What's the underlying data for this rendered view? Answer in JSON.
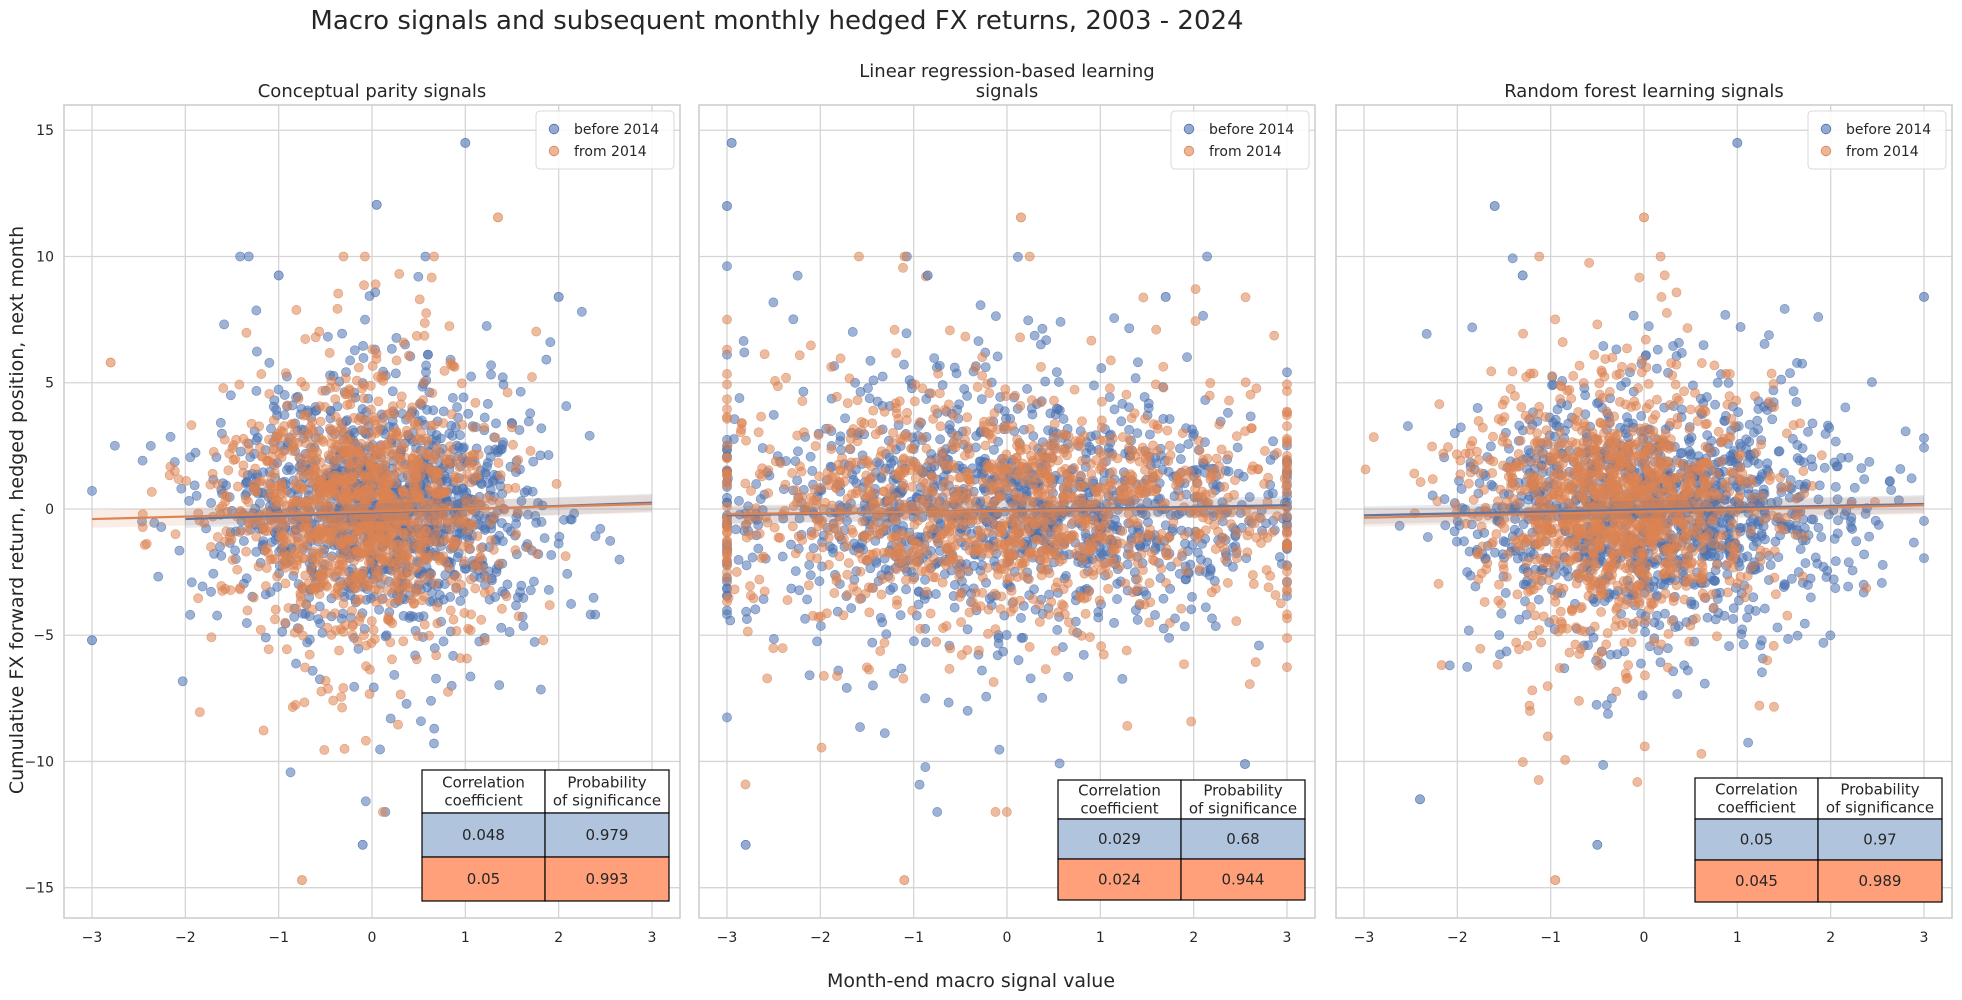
{
  "figure": {
    "suptitle": "Macro signals and subsequent monthly hedged FX returns, 2003 - 2024",
    "shared_xlabel": "Month-end macro signal value",
    "shared_ylabel": "Cumulative FX forward return, hedged position, next month"
  },
  "colors": {
    "before_2014": "#4C72B0",
    "from_2014": "#DD8452",
    "table_row_before": "#B0C4DE",
    "table_row_from": "#FFA07A",
    "grid": "#d5d5d5",
    "spine": "#cccccc"
  },
  "chart_data": [
    {
      "type": "scatter",
      "title": "Conceptual parity signals",
      "xlim": [
        -3.3,
        3.3
      ],
      "ylim": [
        -16.2,
        16.0
      ],
      "xticks": [
        -3,
        -2,
        -1,
        0,
        1,
        2,
        3
      ],
      "yticks": [
        -15,
        -10,
        -5,
        0,
        5,
        10,
        15
      ],
      "grid": true,
      "legend_position": "top-right",
      "legend": [
        "before 2014",
        "from 2014"
      ],
      "series": [
        {
          "name": "before 2014",
          "regression": {
            "x": [
              -2.0,
              3.0
            ],
            "y": [
              -0.4,
              0.25
            ]
          }
        },
        {
          "name": "from 2014",
          "regression": {
            "x": [
              -3.0,
              3.0
            ],
            "y": [
              -0.4,
              0.2
            ]
          }
        }
      ],
      "notable_points": [
        {
          "x": 0.05,
          "y": 12.05
        },
        {
          "x": 1.0,
          "y": 14.5
        },
        {
          "x": 1.35,
          "y": 11.55
        },
        {
          "x": -1.0,
          "y": 9.25
        },
        {
          "x": 2.0,
          "y": 8.4
        },
        {
          "x": -0.75,
          "y": -14.7
        },
        {
          "x": -0.1,
          "y": -13.3
        },
        {
          "x": -3.0,
          "y": -5.2
        },
        {
          "x": -2.8,
          "y": 5.8
        }
      ],
      "table": {
        "headers": [
          "Correlation\ncoefficient",
          "Probability\nof significance"
        ],
        "rows": [
          [
            "0.048",
            "0.979"
          ],
          [
            "0.05",
            "0.993"
          ]
        ]
      }
    },
    {
      "type": "scatter",
      "title": "Linear regression-based learning\nsignals",
      "xlim": [
        -3.3,
        3.3
      ],
      "ylim": [
        -16.2,
        16.0
      ],
      "xticks": [
        -3,
        -2,
        -1,
        0,
        1,
        2,
        3
      ],
      "yticks": [
        -15,
        -10,
        -5,
        0,
        5,
        10,
        15
      ],
      "grid": true,
      "legend_position": "top-right",
      "legend": [
        "before 2014",
        "from 2014"
      ],
      "series": [
        {
          "name": "before 2014",
          "regression": {
            "x": [
              -3.0,
              3.0
            ],
            "y": [
              -0.25,
              0.15
            ]
          }
        },
        {
          "name": "from 2014",
          "regression": {
            "x": [
              -3.0,
              3.0
            ],
            "y": [
              -0.2,
              0.05
            ]
          }
        }
      ],
      "notable_points": [
        {
          "x": -3.0,
          "y": 12.0
        },
        {
          "x": -2.95,
          "y": 14.5
        },
        {
          "x": 0.15,
          "y": 11.55
        },
        {
          "x": -0.85,
          "y": 9.25
        },
        {
          "x": 1.7,
          "y": 8.4
        },
        {
          "x": -1.1,
          "y": -14.7
        },
        {
          "x": -2.8,
          "y": -13.3
        },
        {
          "x": 2.55,
          "y": -10.1
        }
      ],
      "table": {
        "headers": [
          "Correlation\ncoefficient",
          "Probability\nof significance"
        ],
        "rows": [
          [
            "0.029",
            "0.68"
          ],
          [
            "0.024",
            "0.944"
          ]
        ]
      }
    },
    {
      "type": "scatter",
      "title": "Random forest learning signals",
      "xlim": [
        -3.3,
        3.3
      ],
      "ylim": [
        -16.2,
        16.0
      ],
      "xticks": [
        -3,
        -2,
        -1,
        0,
        1,
        2,
        3
      ],
      "yticks": [
        -15,
        -10,
        -5,
        0,
        5,
        10,
        15
      ],
      "grid": true,
      "legend_position": "top-right",
      "legend": [
        "before 2014",
        "from 2014"
      ],
      "series": [
        {
          "name": "before 2014",
          "regression": {
            "x": [
              -3.0,
              3.0
            ],
            "y": [
              -0.25,
              0.2
            ]
          }
        },
        {
          "name": "from 2014",
          "regression": {
            "x": [
              -3.0,
              3.0
            ],
            "y": [
              -0.35,
              0.15
            ]
          }
        }
      ],
      "notable_points": [
        {
          "x": 1.0,
          "y": 14.5
        },
        {
          "x": -1.6,
          "y": 12.0
        },
        {
          "x": 0.0,
          "y": 11.55
        },
        {
          "x": -1.3,
          "y": 9.25
        },
        {
          "x": 3.0,
          "y": 8.4
        },
        {
          "x": -0.95,
          "y": -14.7
        },
        {
          "x": -0.5,
          "y": -13.3
        },
        {
          "x": -2.4,
          "y": -11.5
        }
      ],
      "table": {
        "headers": [
          "Correlation\ncoefficient",
          "Probability\nof significance"
        ],
        "rows": [
          [
            "0.05",
            "0.97"
          ],
          [
            "0.045",
            "0.989"
          ]
        ]
      }
    }
  ]
}
